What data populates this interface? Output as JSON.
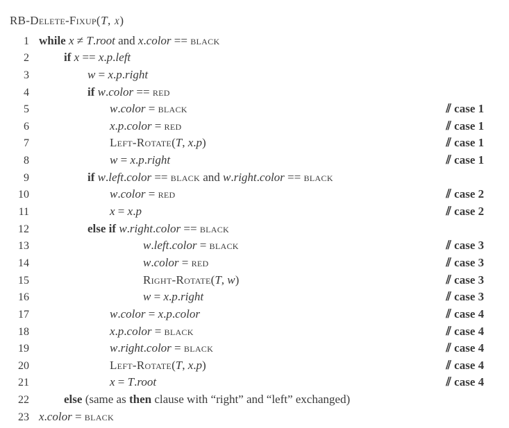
{
  "title_parts": {
    "name": "RB-Delete-Fixup",
    "args_open": "(",
    "arg1": "T",
    "comma": ", ",
    "arg2": "x",
    "args_close": ")"
  },
  "lines": [
    {
      "n": "1",
      "indent": "ind1",
      "html": "<span class='kw'>while</span> <span class='it'>x</span> ≠ <span class='it'>T</span>.<span class='it'>root</span> and <span class='it'>x</span>.<span class='it'>color</span> == <span class='sc'>black</span>",
      "comment": ""
    },
    {
      "n": "2",
      "indent": "ind2",
      "html": "<span class='kw'>if</span> <span class='it'>x</span> == <span class='it'>x</span>.<span class='it'>p</span>.<span class='it'>left</span>",
      "comment": ""
    },
    {
      "n": "3",
      "indent": "ind3",
      "html": "<span class='it'>w</span> = <span class='it'>x</span>.<span class='it'>p</span>.<span class='it'>right</span>",
      "comment": ""
    },
    {
      "n": "4",
      "indent": "ind3",
      "html": "<span class='kw'>if</span> <span class='it'>w</span>.<span class='it'>color</span> == <span class='sc'>red</span>",
      "comment": ""
    },
    {
      "n": "5",
      "indent": "ind4",
      "html": "<span class='it'>w</span>.<span class='it'>color</span> = <span class='sc'>black</span>",
      "comment": "⫽ case 1"
    },
    {
      "n": "6",
      "indent": "ind4",
      "html": "<span class='it'>x</span>.<span class='it'>p</span>.<span class='it'>color</span> = <span class='sc'>red</span>",
      "comment": "⫽ case 1"
    },
    {
      "n": "7",
      "indent": "ind4",
      "html": "<span class='sc'>Left-Rotate</span>(<span class='it'>T</span>, <span class='it'>x</span>.<span class='it'>p</span>)",
      "comment": "⫽ case 1"
    },
    {
      "n": "8",
      "indent": "ind4",
      "html": "<span class='it'>w</span> = <span class='it'>x</span>.<span class='it'>p</span>.<span class='it'>right</span>",
      "comment": "⫽ case 1"
    },
    {
      "n": "9",
      "indent": "ind3",
      "html": "<span class='kw'>if</span> <span class='it'>w</span>.<span class='it'>left</span>.<span class='it'>color</span> == <span class='sc'>black</span> and <span class='it'>w</span>.<span class='it'>right</span>.<span class='it'>color</span> == <span class='sc'>black</span>",
      "comment": ""
    },
    {
      "n": "10",
      "indent": "ind4",
      "html": "<span class='it'>w</span>.<span class='it'>color</span> = <span class='sc'>red</span>",
      "comment": "⫽ case 2"
    },
    {
      "n": "11",
      "indent": "ind4",
      "html": "<span class='it'>x</span> = <span class='it'>x</span>.<span class='it'>p</span>",
      "comment": "⫽ case 2"
    },
    {
      "n": "12",
      "indent": "ind3",
      "html": "<span class='kw'>else if</span> <span class='it'>w</span>.<span class='it'>right</span>.<span class='it'>color</span> == <span class='sc'>black</span>",
      "comment": ""
    },
    {
      "n": "13",
      "indent": "ind5",
      "html": "<span class='it'>w</span>.<span class='it'>left</span>.<span class='it'>color</span> = <span class='sc'>black</span>",
      "comment": "⫽ case 3"
    },
    {
      "n": "14",
      "indent": "ind5",
      "html": "<span class='it'>w</span>.<span class='it'>color</span> = <span class='sc'>red</span>",
      "comment": "⫽ case 3"
    },
    {
      "n": "15",
      "indent": "ind5",
      "html": "<span class='sc'>Right-Rotate</span>(<span class='it'>T</span>, <span class='it'>w</span>)",
      "comment": "⫽ case 3"
    },
    {
      "n": "16",
      "indent": "ind5",
      "html": "<span class='it'>w</span> = <span class='it'>x</span>.<span class='it'>p</span>.<span class='it'>right</span>",
      "comment": "⫽ case 3"
    },
    {
      "n": "17",
      "indent": "ind6",
      "html": "<span class='it'>w</span>.<span class='it'>color</span> = <span class='it'>x</span>.<span class='it'>p</span>.<span class='it'>color</span>",
      "comment": "⫽ case 4"
    },
    {
      "n": "18",
      "indent": "ind6",
      "html": "<span class='it'>x</span>.<span class='it'>p</span>.<span class='it'>color</span> = <span class='sc'>black</span>",
      "comment": "⫽ case 4"
    },
    {
      "n": "19",
      "indent": "ind6",
      "html": "<span class='it'>w</span>.<span class='it'>right</span>.<span class='it'>color</span> = <span class='sc'>black</span>",
      "comment": "⫽ case 4"
    },
    {
      "n": "20",
      "indent": "ind6",
      "html": "<span class='sc'>Left-Rotate</span>(<span class='it'>T</span>, <span class='it'>x</span>.<span class='it'>p</span>)",
      "comment": "⫽ case 4"
    },
    {
      "n": "21",
      "indent": "ind6",
      "html": "<span class='it'>x</span> = <span class='it'>T</span>.<span class='it'>root</span>",
      "comment": "⫽ case 4"
    },
    {
      "n": "22",
      "indent": "ind2",
      "html": "<span class='kw'>else</span> (same as <span class='kw'>then</span> clause with “right” and “left” exchanged)",
      "comment": ""
    },
    {
      "n": "23",
      "indent": "ind1",
      "html": "<span class='it'>x</span>.<span class='it'>color</span> = <span class='sc'>black</span>",
      "comment": ""
    }
  ]
}
